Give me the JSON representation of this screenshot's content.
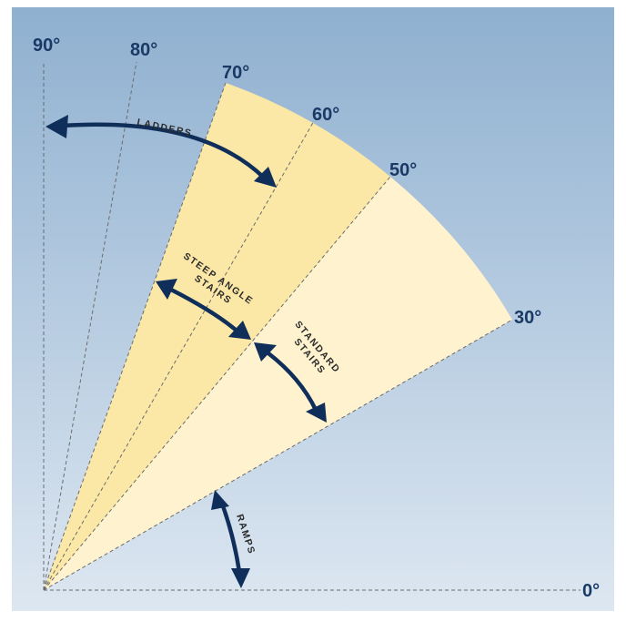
{
  "colors": {
    "bg_top": "#8fb0d0",
    "bg_bottom": "#dde7f1",
    "steep_zone": "#fbe7a6",
    "standard_zone": "#fef2cf",
    "arrow": "#0f2e5a",
    "guide_line": "#6b6b6b",
    "degree_text": "#1a3a66"
  },
  "angles": {
    "a90": "90°",
    "a80": "80°",
    "a70": "70°",
    "a60": "60°",
    "a50": "50°",
    "a30": "30°",
    "a0": "0°"
  },
  "zones": {
    "ladders": "LADDERS",
    "steep_line1": "STEEP ANGLE",
    "steep_line2": "STAIRS",
    "standard_line1": "STANDARD",
    "standard_line2": "STAIRS",
    "ramps": "RAMPS"
  },
  "icons": {
    "arrow": "double-headed-curved-arrow"
  }
}
